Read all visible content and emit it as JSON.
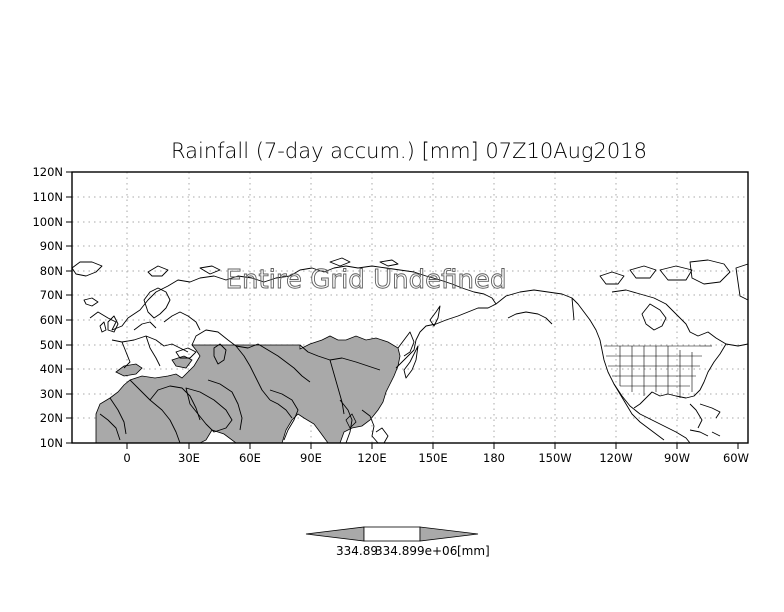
{
  "title": "Rainfall (7-day accum.) [mm] 07Z10Aug2018",
  "overlay_message": "Entire Grid Undefined",
  "y_ticks": [
    "120N",
    "110N",
    "100N",
    "90N",
    "80N",
    "70N",
    "60N",
    "50N",
    "40N",
    "30N",
    "20N",
    "10N"
  ],
  "x_ticks": [
    "0",
    "30E",
    "60E",
    "90E",
    "120E",
    "150E",
    "180",
    "150W",
    "120W",
    "90W",
    "60W"
  ],
  "colorbar": {
    "labels": [
      "334.89",
      "334.899e+06",
      "[mm]"
    ]
  },
  "colors": {
    "land_fill": "#a9a9a9",
    "coast": "#000000",
    "grid": "#a0a0a0"
  },
  "grid": "dotted"
}
